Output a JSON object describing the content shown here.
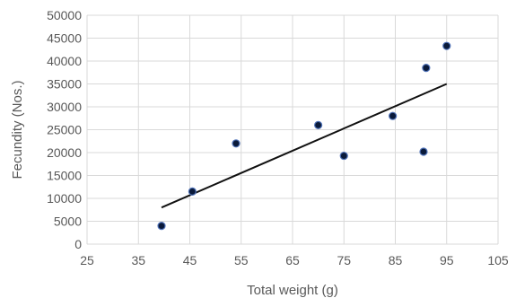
{
  "chart_data": {
    "type": "scatter",
    "title": "",
    "xlabel": "Total weight (g)",
    "ylabel": "Fecundity (Nos.)",
    "xlim": [
      25,
      105
    ],
    "ylim": [
      0,
      50000
    ],
    "xticks": [
      25,
      35,
      45,
      55,
      65,
      75,
      85,
      95,
      105
    ],
    "yticks": [
      0,
      5000,
      10000,
      15000,
      20000,
      25000,
      30000,
      35000,
      40000,
      45000,
      50000
    ],
    "grid": "vertical and horizontal",
    "legend": "none",
    "series": [
      {
        "points": [
          {
            "x": 39.5,
            "y": 4000
          },
          {
            "x": 45.5,
            "y": 11500
          },
          {
            "x": 54,
            "y": 22000
          },
          {
            "x": 70,
            "y": 26000
          },
          {
            "x": 75,
            "y": 19300
          },
          {
            "x": 84.5,
            "y": 28000
          },
          {
            "x": 90.5,
            "y": 20200
          },
          {
            "x": 91,
            "y": 38500
          },
          {
            "x": 95,
            "y": 43300
          }
        ]
      }
    ],
    "trendline": {
      "type": "linear",
      "x": [
        39.5,
        95
      ],
      "y": [
        8000,
        35000
      ]
    },
    "colors": {
      "marker_fill": "#0a1a3a",
      "marker_edge": "#4f72b8",
      "trendline": "#111111",
      "grid": "#d9d9d9",
      "tick_text": "#595959"
    }
  }
}
